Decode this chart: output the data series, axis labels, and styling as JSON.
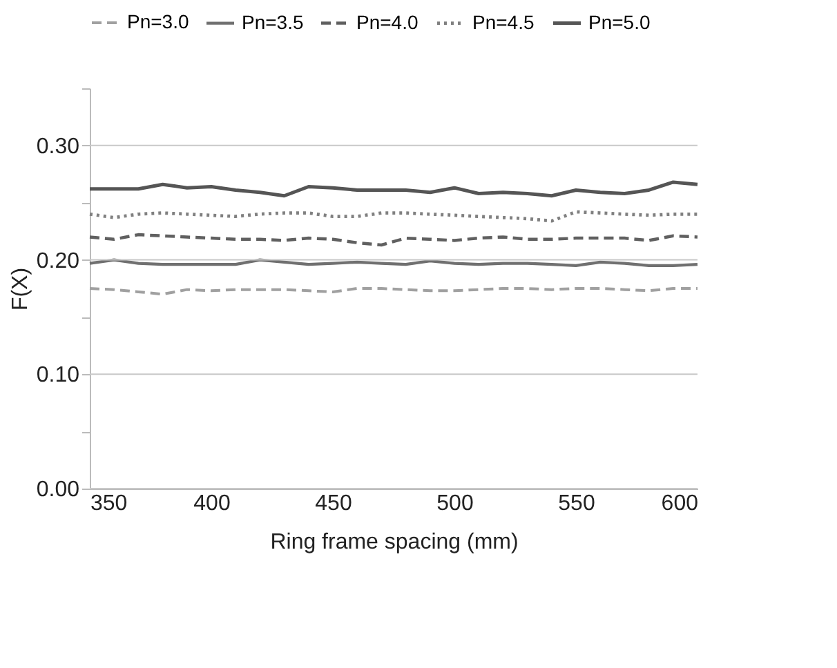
{
  "chart_data": {
    "type": "line",
    "xlabel": "Ring frame spacing (mm)",
    "ylabel": "F(X)",
    "x": [
      350,
      360,
      370,
      380,
      390,
      400,
      410,
      420,
      430,
      440,
      450,
      460,
      470,
      480,
      490,
      500,
      510,
      520,
      530,
      540,
      550,
      560,
      570,
      580,
      590,
      600
    ],
    "xlim": [
      350,
      600
    ],
    "xticks": [
      350,
      400,
      450,
      500,
      550,
      600
    ],
    "ylim": [
      0,
      0.35
    ],
    "yticks": [
      {
        "value": 0,
        "label": "0.00"
      },
      {
        "value": 0.05,
        "label": null
      },
      {
        "value": 0.1,
        "label": "0.10"
      },
      {
        "value": 0.15,
        "label": null
      },
      {
        "value": 0.2,
        "label": "0.20"
      },
      {
        "value": 0.25,
        "label": null
      },
      {
        "value": 0.3,
        "label": "0.30"
      },
      {
        "value": 0.35,
        "label": null
      }
    ],
    "grid": "y",
    "legend": "top",
    "marker": "none",
    "series": [
      {
        "name": "Pn=3.0",
        "color": "#a0a0a0",
        "line_style": "dashed",
        "values": [
          0.175,
          0.174,
          0.172,
          0.17,
          0.174,
          0.173,
          0.174,
          0.174,
          0.174,
          0.173,
          0.172,
          0.175,
          0.175,
          0.174,
          0.173,
          0.173,
          0.174,
          0.175,
          0.175,
          0.174,
          0.175,
          0.175,
          0.174,
          0.173,
          0.175,
          0.175
        ]
      },
      {
        "name": "Pn=3.5",
        "color": "#707070",
        "line_style": "solid",
        "values": [
          0.197,
          0.2,
          0.197,
          0.196,
          0.196,
          0.196,
          0.196,
          0.2,
          0.198,
          0.196,
          0.197,
          0.198,
          0.197,
          0.196,
          0.199,
          0.197,
          0.196,
          0.197,
          0.197,
          0.196,
          0.195,
          0.198,
          0.197,
          0.195,
          0.195,
          0.196
        ]
      },
      {
        "name": "Pn=4.0",
        "color": "#606060",
        "line_style": "dashed",
        "values": [
          0.22,
          0.218,
          0.222,
          0.221,
          0.22,
          0.219,
          0.218,
          0.218,
          0.217,
          0.219,
          0.218,
          0.215,
          0.213,
          0.219,
          0.218,
          0.217,
          0.219,
          0.22,
          0.218,
          0.218,
          0.219,
          0.219,
          0.219,
          0.217,
          0.221,
          0.22
        ]
      },
      {
        "name": "Pn=4.5",
        "color": "#808080",
        "line_style": "dotted",
        "values": [
          0.24,
          0.237,
          0.24,
          0.241,
          0.24,
          0.239,
          0.238,
          0.24,
          0.241,
          0.241,
          0.238,
          0.238,
          0.241,
          0.241,
          0.24,
          0.239,
          0.238,
          0.237,
          0.236,
          0.234,
          0.242,
          0.241,
          0.24,
          0.239,
          0.24,
          0.24
        ]
      },
      {
        "name": "Pn=5.0",
        "color": "#555555",
        "line_style": "solid",
        "values": [
          0.262,
          0.262,
          0.262,
          0.266,
          0.263,
          0.264,
          0.261,
          0.259,
          0.256,
          0.264,
          0.263,
          0.261,
          0.261,
          0.261,
          0.259,
          0.263,
          0.258,
          0.259,
          0.258,
          0.256,
          0.261,
          0.259,
          0.258,
          0.261,
          0.268,
          0.266
        ]
      }
    ]
  }
}
